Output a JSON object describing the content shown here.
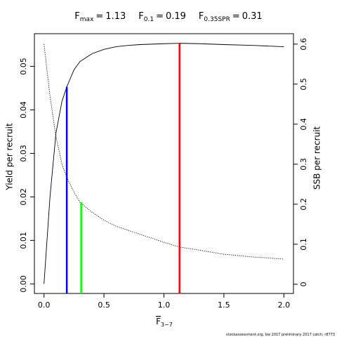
{
  "chart_data": {
    "type": "line",
    "title": [
      {
        "symbol": "F",
        "sub": "max",
        "op": "=",
        "value": 1.13,
        "color": "#ff0000",
        "height": 0.0553,
        "axis": "y"
      },
      {
        "symbol": "F",
        "sub": "0.1",
        "op": "=",
        "value": 0.19,
        "color": "#0000ff",
        "height": 0.0453,
        "axis": "y"
      },
      {
        "symbol": "F",
        "sub": "0.35SPR",
        "op": "=",
        "value": 0.31,
        "color": "#00ff00",
        "height": 0.205,
        "axis": "y2"
      }
    ],
    "xlabel": {
      "symbol": "F",
      "sub": "3−7"
    },
    "ylabel": "Yield per recruit",
    "y2label": "SSB per recruit",
    "footer": "stockassessment.org, bw 2017 preliminary 2017 catch, r8773",
    "x": [
      0,
      0.05,
      0.1,
      0.15,
      0.19,
      0.25,
      0.3,
      0.4,
      0.5,
      0.6,
      0.7,
      0.8,
      1.0,
      1.13,
      1.3,
      1.5,
      1.75,
      2.0
    ],
    "series": [
      {
        "name": "YPR",
        "color": "#000000",
        "dash": false,
        "axis": "y",
        "values": [
          0,
          0.02,
          0.0347,
          0.042,
          0.0453,
          0.0492,
          0.0511,
          0.0529,
          0.0539,
          0.0545,
          0.0548,
          0.055,
          0.0552,
          0.0553,
          0.0552,
          0.055,
          0.0548,
          0.0545
        ]
      },
      {
        "name": "SSB",
        "color": "#000000",
        "dash": true,
        "axis": "y2",
        "values": [
          0.6,
          0.47,
          0.368,
          0.3,
          0.267,
          0.23,
          0.205,
          0.18,
          0.16,
          0.145,
          0.135,
          0.125,
          0.105,
          0.093,
          0.085,
          0.075,
          0.068,
          0.063
        ]
      }
    ],
    "xlim": [
      -0.08,
      2.08
    ],
    "ylim": [
      -0.0022,
      0.0575
    ],
    "y2lim": [
      -0.023,
      0.626
    ],
    "xticks": [
      {
        "value": 0,
        "label": "0.0"
      },
      {
        "value": 0.5,
        "label": "0.5"
      },
      {
        "value": 1,
        "label": "1.0"
      },
      {
        "value": 1.5,
        "label": "1.5"
      },
      {
        "value": 2,
        "label": "2.0"
      }
    ],
    "yticks": [
      {
        "value": 0,
        "label": "0.00"
      },
      {
        "value": 0.01,
        "label": "0.01"
      },
      {
        "value": 0.02,
        "label": "0.02"
      },
      {
        "value": 0.03,
        "label": "0.03"
      },
      {
        "value": 0.04,
        "label": "0.04"
      },
      {
        "value": 0.05,
        "label": "0.05"
      }
    ],
    "y2ticks": [
      0,
      0.1,
      0.2,
      0.3,
      0.4,
      0.5,
      0.6
    ]
  }
}
